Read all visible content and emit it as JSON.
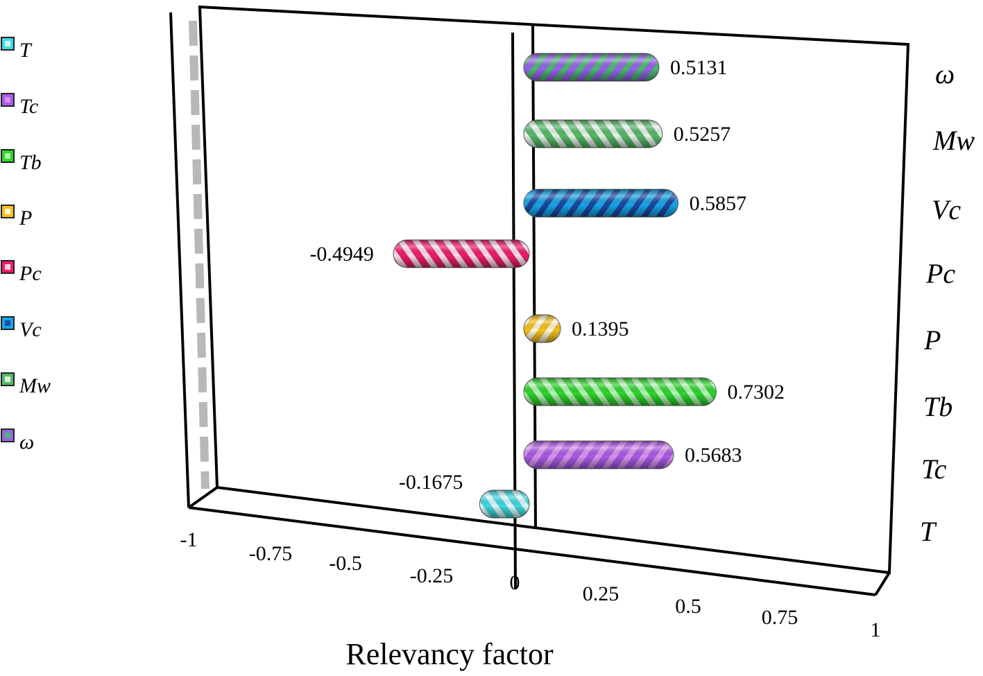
{
  "chart_data": {
    "type": "bar",
    "orientation": "horizontal",
    "style": "3d-cylinder",
    "title": "",
    "xlabel": "Relevancy factor",
    "ylabel": "",
    "xlim": [
      -1,
      1
    ],
    "xticks": [
      "-1",
      "-0.75",
      "-0.5",
      "-0.25",
      "0",
      "0.25",
      "0.5",
      "0.75",
      "1"
    ],
    "legend_position": "left",
    "bars": [
      {
        "name": "T",
        "value": -0.1675,
        "label": "-0.1675",
        "color": "#41d8e2",
        "stripe": "#f2ffff"
      },
      {
        "name": "Tc",
        "value": 0.5683,
        "label": "0.5683",
        "color": "#a95ae6",
        "stripe": "#e49cf2"
      },
      {
        "name": "Tb",
        "value": 0.7302,
        "label": "0.7302",
        "color": "#2fd42f",
        "stripe": "#c8ffc8"
      },
      {
        "name": "P",
        "value": 0.1395,
        "label": "0.1395",
        "color": "#f5c21b",
        "stripe": "#ffffff"
      },
      {
        "name": "Pc",
        "value": -0.4949,
        "label": "-0.4949",
        "color": "#ee1c6e",
        "stripe": "#ffffff"
      },
      {
        "name": "Vc",
        "value": 0.5857,
        "label": "0.5857",
        "color": "#19a4e8",
        "stripe": "#1b3a92"
      },
      {
        "name": "Mw",
        "value": 0.5257,
        "label": "0.5257",
        "color": "#58b868",
        "stripe": "#ffffff"
      },
      {
        "name": "ω",
        "value": 0.5131,
        "label": "0.5131",
        "color": "#9466e6",
        "stripe": "#3ec85a"
      }
    ]
  }
}
